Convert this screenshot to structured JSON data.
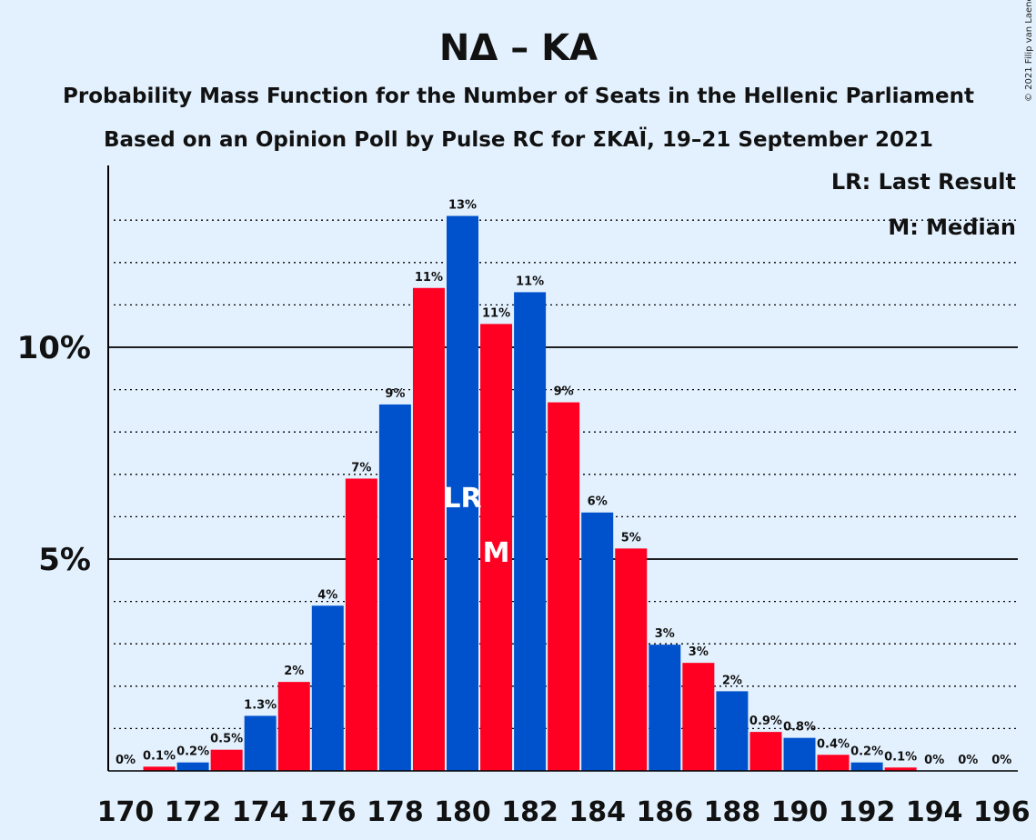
{
  "chart_data": {
    "type": "bar",
    "title": "ΝΔ – ΚΑ",
    "subtitle_lines": [
      "Probability Mass Function for the Number of Seats in the Hellenic Parliament",
      "Based on an Opinion Poll by Pulse RC for ΣΚΑΪ, 19–21 September 2021"
    ],
    "copyright": "© 2021 Filip van Laenen",
    "legend": [
      "LR: Last Result",
      "M: Median"
    ],
    "legend_placement": "top-right",
    "x": [
      170,
      171,
      172,
      173,
      174,
      175,
      176,
      177,
      178,
      179,
      180,
      181,
      182,
      183,
      184,
      185,
      186,
      187,
      188,
      189,
      190,
      191,
      192,
      193,
      194,
      195,
      196
    ],
    "values": [
      0,
      0.1,
      0.2,
      0.5,
      1.3,
      2.1,
      3.9,
      6.9,
      8.65,
      11.4,
      13.1,
      10.55,
      11.3,
      8.7,
      6.1,
      5.25,
      2.98,
      2.55,
      1.88,
      0.92,
      0.78,
      0.38,
      0.2,
      0.08,
      0,
      0,
      0
    ],
    "labels": [
      "0%",
      "0.1%",
      "0.2%",
      "0.5%",
      "1.3%",
      "2%",
      "4%",
      "7%",
      "9%",
      "11%",
      "13%",
      "11%",
      "11%",
      "9%",
      "6%",
      "5%",
      "3%",
      "3%",
      "2%",
      "0.9%",
      "0.8%",
      "0.4%",
      "0.2%",
      "0.1%",
      "0%",
      "0%",
      "0%"
    ],
    "x_tick_labels": [
      "170",
      "172",
      "174",
      "176",
      "178",
      "180",
      "182",
      "184",
      "186",
      "188",
      "190",
      "192",
      "194",
      "196"
    ],
    "y_ticks": [
      {
        "value": 5,
        "label": "5%"
      },
      {
        "value": 10,
        "label": "10%"
      }
    ],
    "ylim": [
      0,
      14
    ],
    "grid": "dotted horizontal every 1%, solid at 5% and 10%",
    "markers": [
      {
        "seat": 180,
        "label": "LR"
      },
      {
        "seat": 181,
        "label": "M"
      }
    ],
    "colors": {
      "even": "#0052cc",
      "odd": "#ff0022",
      "background": "#e3f1fe"
    }
  }
}
